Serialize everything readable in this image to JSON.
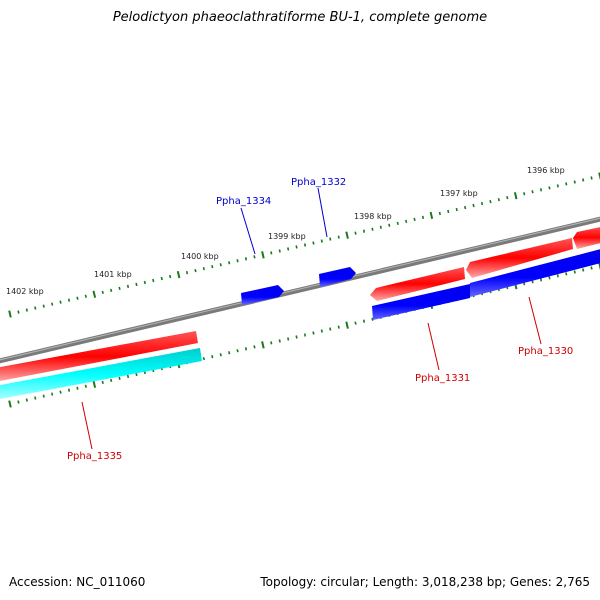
{
  "title": "Pelodictyon phaeoclathratiforme BU-1, complete genome",
  "footer": {
    "accession": "Accession: NC_011060",
    "summary": "Topology: circular; Length: 3,018,238 bp; Genes: 2,765"
  },
  "scale_labels": [
    "1396 kbp",
    "1397 kbp",
    "1398 kbp",
    "1399 kbp",
    "1400 kbp",
    "1401 kbp",
    "1402 kbp"
  ],
  "genes": [
    {
      "label": "Ppha_1332",
      "strand": "forward",
      "color": "#0000cc"
    },
    {
      "label": "Ppha_1334",
      "strand": "forward",
      "color": "#0000cc"
    },
    {
      "label": "Ppha_1330",
      "strand": "reverse",
      "color": "#cc0000"
    },
    {
      "label": "Ppha_1331",
      "strand": "reverse",
      "color": "#cc0000"
    },
    {
      "label": "Ppha_1335",
      "strand": "reverse",
      "color": "#cc0000"
    }
  ],
  "colors": {
    "backbone": "#808080",
    "tick": "#1a7a1a",
    "gene_red": "#ff0000",
    "gene_blue": "#0000ff",
    "gene_cyan": "#00ffff",
    "label_blue": "#0000cc",
    "label_red": "#cc0000"
  }
}
